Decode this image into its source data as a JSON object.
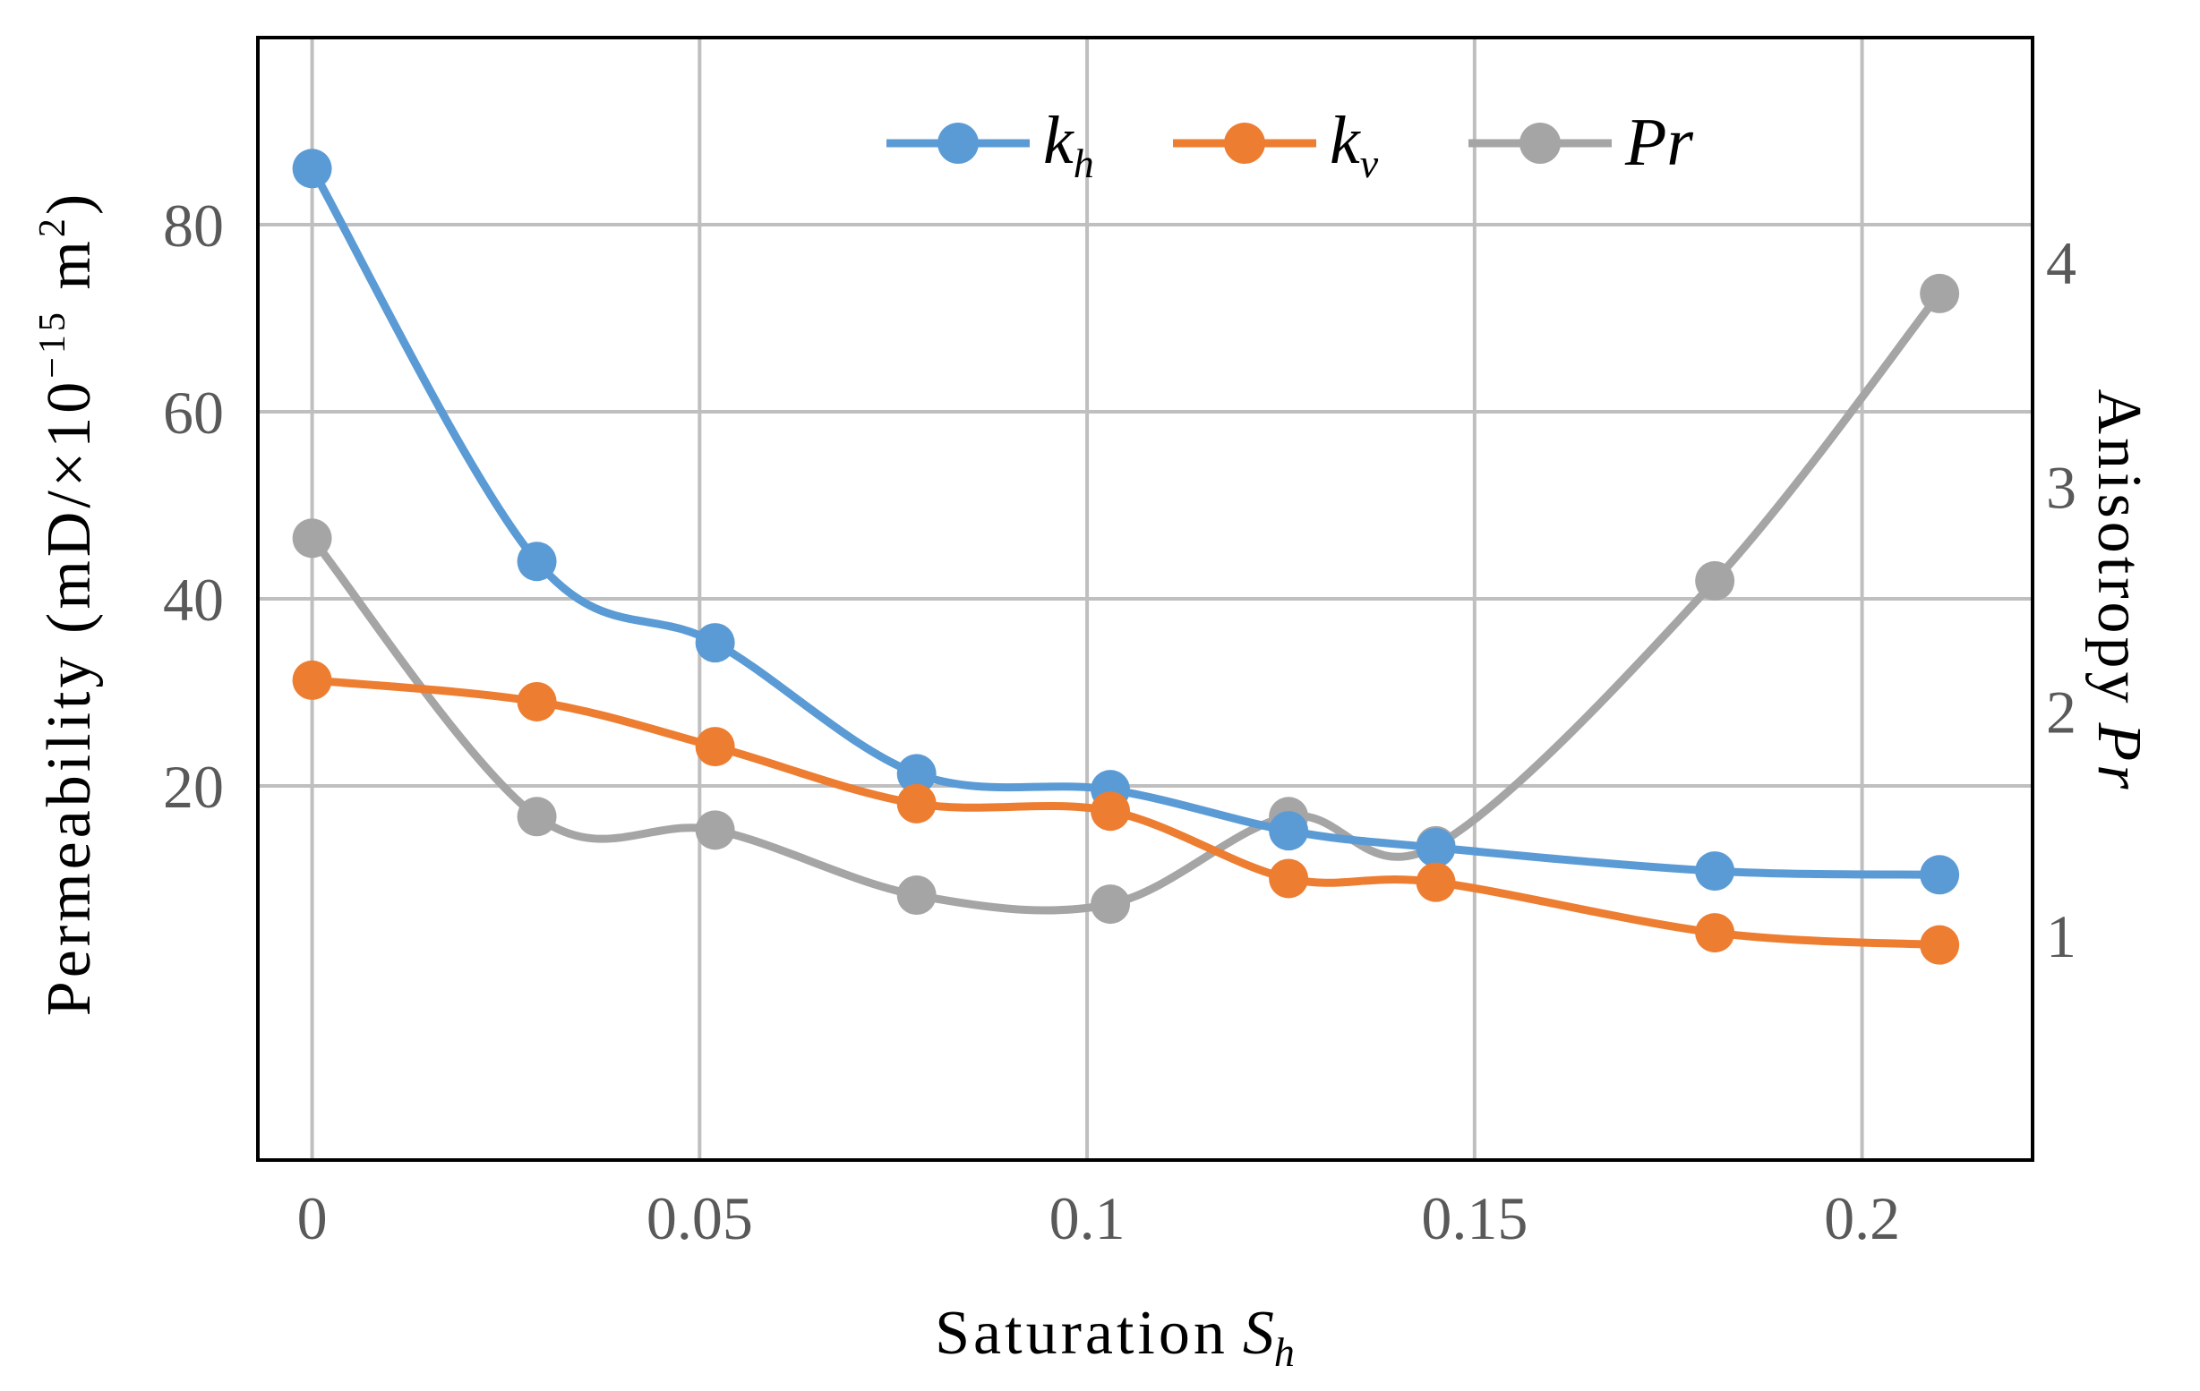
{
  "chart_data": {
    "type": "line",
    "x": [
      0,
      0.029,
      0.052,
      0.078,
      0.103,
      0.126,
      0.145,
      0.181,
      0.21
    ],
    "xlim": [
      -0.007,
      0.222
    ],
    "xticks": [
      "0",
      "0.05",
      "0.1",
      "0.15",
      "0.2"
    ],
    "xtick_values": [
      0,
      0.05,
      0.1,
      0.15,
      0.2
    ],
    "ylim_left": [
      -20,
      100
    ],
    "yticks_left": [
      "20",
      "40",
      "60",
      "80"
    ],
    "ytick_values_left": [
      20,
      40,
      60,
      80
    ],
    "ylim_right": [
      0,
      5
    ],
    "yticks_right": [
      "1",
      "2",
      "3",
      "4"
    ],
    "ytick_values_right": [
      1,
      2,
      3,
      4
    ],
    "xlabel": {
      "main": "Saturation",
      "var": "S",
      "sub": "h"
    },
    "ylabel_left": {
      "pre": "Permeability (mD/×10",
      "sup": "−15",
      "mid": " m",
      "sup2": "2",
      "post": ")"
    },
    "ylabel_right": {
      "main": "Anisotropy",
      "var": "Pr"
    },
    "series": [
      {
        "name": "k",
        "sub": "h",
        "axis": "left",
        "color": "#5B9BD5",
        "values": [
          86,
          44,
          35.3,
          21.3,
          19.6,
          15.2,
          13.4,
          10.9,
          10.5
        ]
      },
      {
        "name": "k",
        "sub": "v",
        "axis": "left",
        "color": "#ED7D31",
        "values": [
          31.3,
          29,
          24.2,
          18.1,
          17.3,
          10.1,
          9.7,
          4.3,
          3
        ]
      },
      {
        "name": "Pr",
        "sub": "",
        "axis": "right",
        "color": "#A5A5A5",
        "values": [
          2.77,
          1.53,
          1.47,
          1.18,
          1.14,
          1.53,
          1.4,
          2.58,
          3.86
        ]
      }
    ],
    "grid": true,
    "legend_position": "top-center"
  }
}
